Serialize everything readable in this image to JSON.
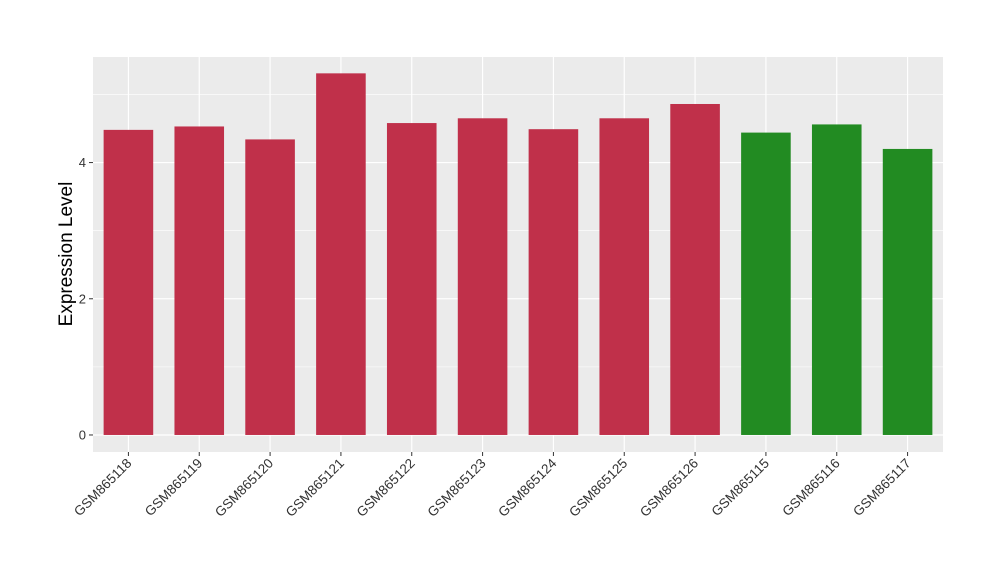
{
  "chart_data": {
    "type": "bar",
    "title": "",
    "xlabel": "",
    "ylabel": "Expression Level",
    "ylim": [
      -0.25,
      5.55
    ],
    "y_ticks": [
      0,
      2,
      4
    ],
    "y_tick_labels": [
      "0",
      "2",
      "4"
    ],
    "grid": true,
    "legend": "none",
    "background_color": "#ebebeb",
    "grid_color": "#ffffff",
    "categories": [
      "GSM865118",
      "GSM865119",
      "GSM865120",
      "GSM865121",
      "GSM865122",
      "GSM865123",
      "GSM865124",
      "GSM865125",
      "GSM865126",
      "GSM865115",
      "GSM865116",
      "GSM865117"
    ],
    "values": [
      4.48,
      4.53,
      4.34,
      5.31,
      4.58,
      4.65,
      4.49,
      4.65,
      4.86,
      4.44,
      4.56,
      4.2
    ],
    "bar_colors": [
      "#c0304a",
      "#c0304a",
      "#c0304a",
      "#c0304a",
      "#c0304a",
      "#c0304a",
      "#c0304a",
      "#c0304a",
      "#c0304a",
      "#228b22",
      "#228b22",
      "#228b22"
    ]
  }
}
